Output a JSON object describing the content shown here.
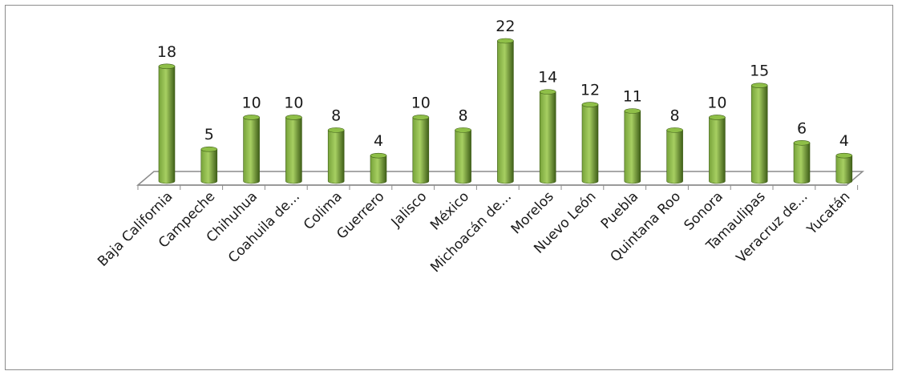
{
  "chart_data": {
    "type": "bar",
    "categories": [
      "Baja California",
      "Campeche",
      "Chihuhua",
      "Coahuila de...",
      "Colima",
      "Guerrero",
      "Jalisco",
      "México",
      "Michoacán de...",
      "Morelos",
      "Nuevo León",
      "Puebla",
      "Quintana Roo",
      "Sonora",
      "Tamaulipas",
      "Veracruz de...",
      "Yucatán"
    ],
    "values": [
      18,
      5,
      10,
      10,
      8,
      4,
      10,
      8,
      22,
      14,
      12,
      11,
      8,
      10,
      15,
      6,
      4
    ],
    "title": "",
    "xlabel": "",
    "ylabel": "",
    "ylim": [
      0,
      22
    ],
    "grid": false,
    "legend": "none",
    "style": "3d-cylinder",
    "colors": {
      "bar_dark": "#3f5e18",
      "bar_mid": "#77a33a",
      "bar_light": "#a7cf62",
      "bar_top": "#8fbf48",
      "floor": "#8c8c8c"
    }
  }
}
